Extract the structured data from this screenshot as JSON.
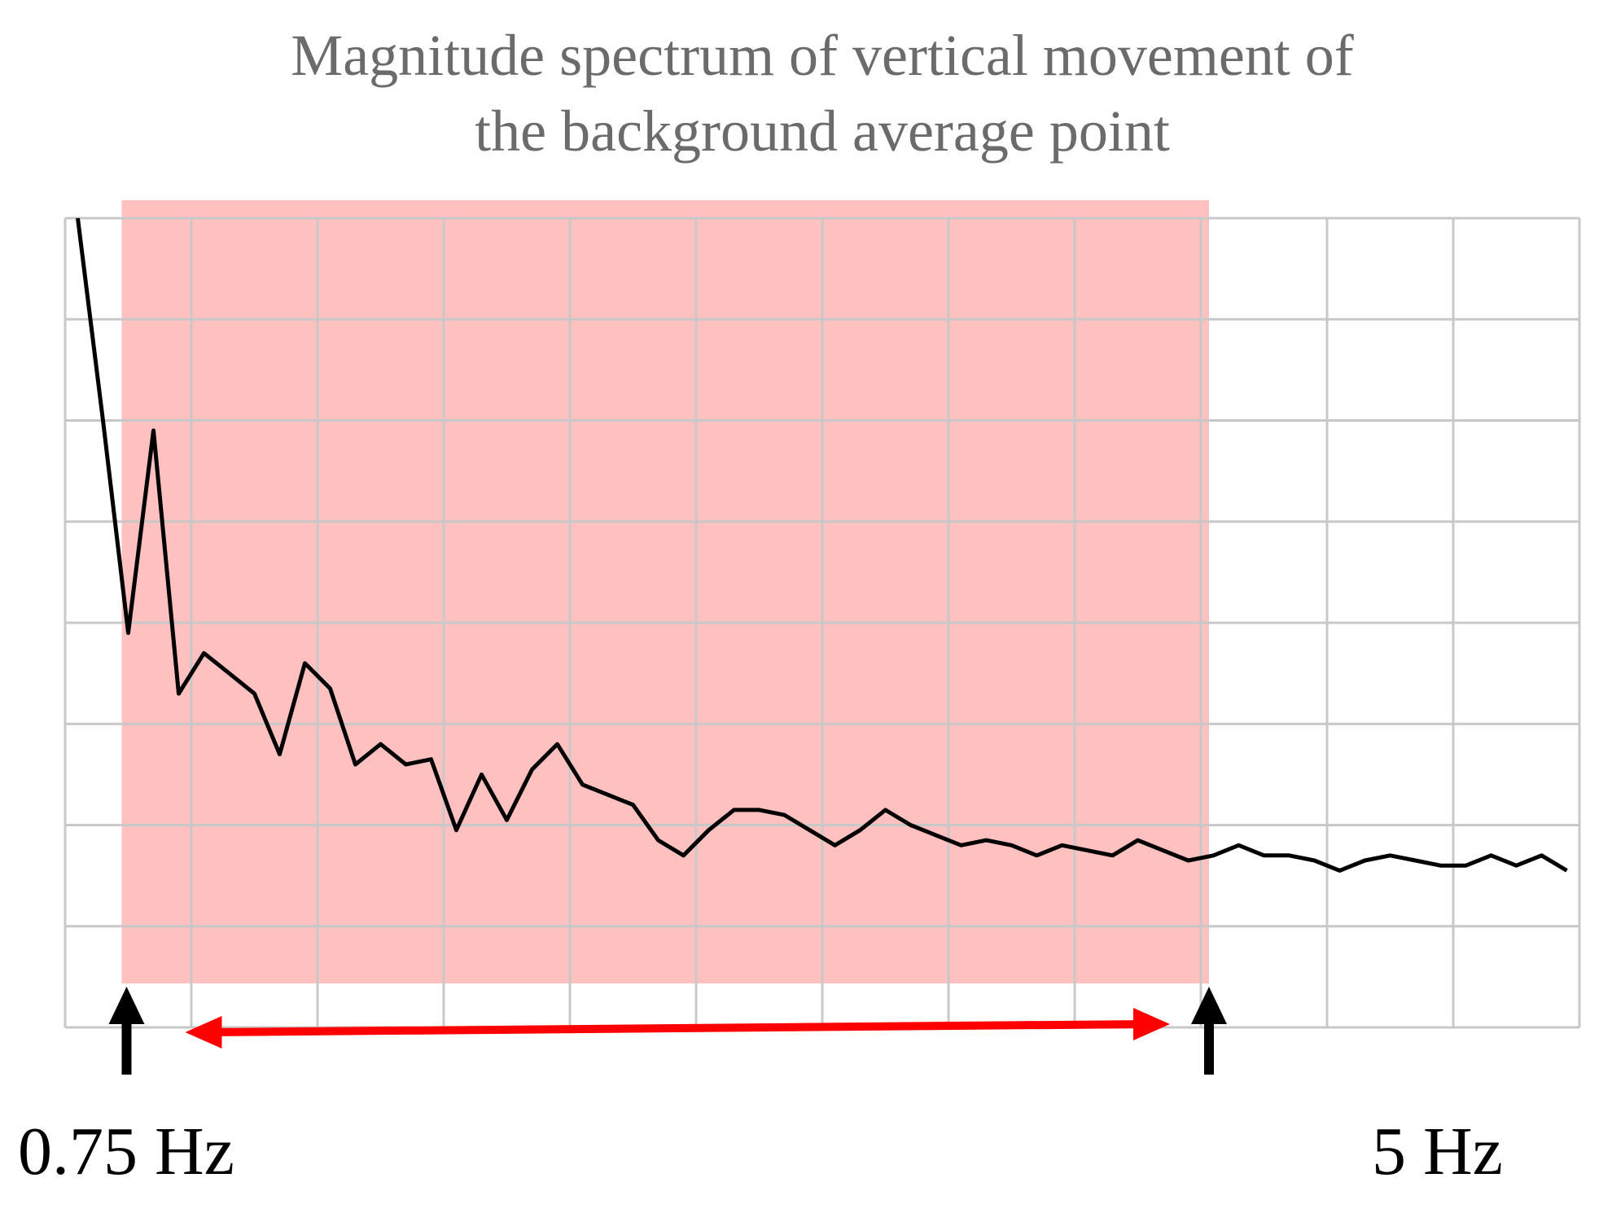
{
  "chart_data": {
    "type": "line",
    "title": [
      "Magnitude spectrum of vertical movement of",
      "the background average point"
    ],
    "xlabel": "",
    "ylabel": "",
    "grid": true,
    "x_units": "Hz",
    "xlim": [
      0.5,
      6.5
    ],
    "ylim": [
      0,
      8
    ],
    "x": [
      0.55,
      0.65,
      0.75,
      0.85,
      0.95,
      1.05,
      1.15,
      1.25,
      1.35,
      1.45,
      1.55,
      1.65,
      1.75,
      1.85,
      1.95,
      2.05,
      2.15,
      2.25,
      2.35,
      2.45,
      2.55,
      2.65,
      2.75,
      2.85,
      2.95,
      3.05,
      3.15,
      3.25,
      3.35,
      3.45,
      3.55,
      3.65,
      3.75,
      3.85,
      3.95,
      4.05,
      4.15,
      4.25,
      4.35,
      4.45,
      4.55,
      4.65,
      4.75,
      4.85,
      4.95,
      5.05,
      5.15,
      5.25,
      5.35,
      5.45,
      5.55,
      5.65,
      5.75,
      5.85,
      5.95,
      6.05,
      6.15,
      6.25,
      6.35,
      6.45
    ],
    "values": [
      8.0,
      6.0,
      3.9,
      5.9,
      3.3,
      3.7,
      3.5,
      3.3,
      2.7,
      3.6,
      3.35,
      2.6,
      2.8,
      2.6,
      2.65,
      1.95,
      2.5,
      2.05,
      2.55,
      2.8,
      2.4,
      2.3,
      2.2,
      1.85,
      1.7,
      1.95,
      2.15,
      2.15,
      2.1,
      1.95,
      1.8,
      1.95,
      2.15,
      2.0,
      1.9,
      1.8,
      1.85,
      1.8,
      1.7,
      1.8,
      1.75,
      1.7,
      1.85,
      1.75,
      1.65,
      1.7,
      1.8,
      1.7,
      1.7,
      1.65,
      1.55,
      1.65,
      1.7,
      1.65,
      1.6,
      1.6,
      1.7,
      1.6,
      1.7,
      1.55
    ],
    "highlight_band": {
      "from": 0.75,
      "to": 5.0,
      "color": "#ffc0c0"
    },
    "range_arrow": {
      "from": 0.75,
      "to": 5.0,
      "color": "#ff0000"
    },
    "annotations": [
      {
        "label": "0.75 Hz",
        "x": 0.75
      },
      {
        "label": "5 Hz",
        "x": 5.0
      }
    ],
    "colors": {
      "line": "#000000",
      "grid": "#c8c8c8",
      "title": "#6b6b6b"
    }
  }
}
